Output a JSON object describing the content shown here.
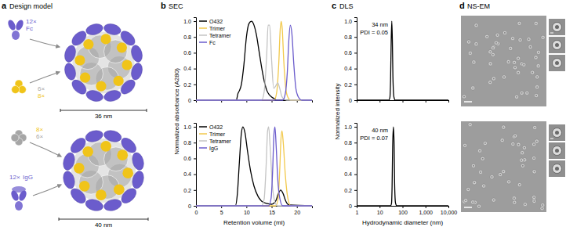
{
  "figure": {
    "panels": [
      {
        "letter": "a",
        "title": "Design model"
      },
      {
        "letter": "b",
        "title": "SEC"
      },
      {
        "letter": "c",
        "title": "DLS"
      },
      {
        "letter": "d",
        "title": "NS-EM"
      }
    ],
    "design_model": [
      {
        "components": [
          {
            "count": "12×",
            "name": "Fc",
            "color": "#6b5ccc"
          },
          {
            "count": "6×",
            "color": "#a6a6a6"
          },
          {
            "count": "8×",
            "color": "#f0c419"
          }
        ],
        "diameter": "36 nm"
      },
      {
        "components": [
          {
            "count": "8×",
            "color": "#f0c419"
          },
          {
            "count": "6×",
            "color": "#a6a6a6"
          },
          {
            "count": "12×",
            "name": "IgG",
            "color": "#6b5ccc"
          }
        ],
        "diameter": "40 nm"
      }
    ]
  },
  "chart_data": [
    {
      "type": "line",
      "ylabel": "Normalized absorbance (A280)",
      "xlim": [
        0,
        23
      ],
      "xticks": [
        0,
        5,
        10,
        15,
        20
      ],
      "ylim": [
        0,
        1.05
      ],
      "yticks": [
        0,
        0.2,
        0.4,
        0.6,
        0.8,
        {
          "value": 1,
          "label": "1.0"
        }
      ],
      "tick_labels": "y",
      "legend": "upper left",
      "series": [
        {
          "name": "O432",
          "color": "#000000",
          "x": [
            0,
            8,
            8.3,
            8.6,
            9,
            9.5,
            10,
            10.5,
            11,
            11.5,
            12,
            12.5,
            13,
            13.5,
            14,
            14.5,
            15,
            15.5,
            16,
            23
          ],
          "values": [
            0,
            0,
            0.08,
            0.12,
            0.2,
            0.45,
            0.8,
            0.97,
            1.0,
            0.95,
            0.82,
            0.62,
            0.42,
            0.25,
            0.13,
            0.07,
            0.04,
            0.02,
            0,
            0
          ]
        },
        {
          "name": "Trimer",
          "color": "#f2c94c",
          "x": [
            0,
            15.5,
            16,
            16.4,
            16.7,
            16.9,
            17.1,
            17.4,
            17.8,
            18.2,
            18.8,
            23
          ],
          "values": [
            0,
            0,
            0.1,
            0.45,
            0.9,
            1.0,
            0.9,
            0.5,
            0.15,
            0.04,
            0,
            0
          ]
        },
        {
          "name": "Tetramer",
          "color": "#c4c4c4",
          "x": [
            0,
            13,
            13.5,
            14,
            14.3,
            14.6,
            15,
            15.4,
            15.8,
            16.2,
            16.6,
            17,
            17.5,
            18,
            23
          ],
          "values": [
            0,
            0,
            0.1,
            0.55,
            0.95,
            0.95,
            0.5,
            0.15,
            0.18,
            0.22,
            0.15,
            0.05,
            0.01,
            0,
            0
          ]
        },
        {
          "name": "Fc",
          "color": "#6b5ccc",
          "x": [
            0,
            17.2,
            17.7,
            18.1,
            18.4,
            18.7,
            19,
            19.4,
            19.8,
            20.3,
            21,
            23
          ],
          "values": [
            0,
            0,
            0.08,
            0.35,
            0.75,
            0.95,
            0.85,
            0.45,
            0.15,
            0.04,
            0,
            0
          ]
        }
      ]
    },
    {
      "type": "line",
      "xlabel": "Retention volume (ml)",
      "xlim": [
        0,
        23
      ],
      "xticks": [
        0,
        5,
        10,
        15,
        20
      ],
      "ylim": [
        0,
        1.05
      ],
      "yticks": [
        0,
        0.2,
        0.4,
        0.6,
        0.8,
        {
          "value": 1,
          "label": "1.0"
        }
      ],
      "legend": "upper left",
      "series": [
        {
          "name": "O432",
          "color": "#000000",
          "x": [
            0,
            7.8,
            8.2,
            8.6,
            9,
            9.3,
            9.7,
            10.2,
            10.8,
            11.5,
            12.3,
            13,
            14,
            15,
            15.8,
            16.3,
            16.8,
            17.3,
            17.8,
            18.5,
            23
          ],
          "values": [
            0,
            0,
            0.15,
            0.55,
            0.92,
            1.0,
            0.93,
            0.7,
            0.45,
            0.25,
            0.12,
            0.06,
            0.03,
            0.02,
            0.06,
            0.15,
            0.2,
            0.15,
            0.06,
            0.01,
            0
          ]
        },
        {
          "name": "Trimer",
          "color": "#f2c94c",
          "x": [
            0,
            15.8,
            16.3,
            16.6,
            16.85,
            17.05,
            17.3,
            17.7,
            18.2,
            18.8,
            23
          ],
          "values": [
            0,
            0,
            0.1,
            0.45,
            0.85,
            0.95,
            0.8,
            0.4,
            0.1,
            0,
            0
          ]
        },
        {
          "name": "Tetramer",
          "color": "#c4c4c4",
          "x": [
            0,
            13,
            13.5,
            13.9,
            14.2,
            14.4,
            14.7,
            15.1,
            15.6,
            16.2,
            23
          ],
          "values": [
            0,
            0,
            0.08,
            0.5,
            0.95,
            1.0,
            0.75,
            0.3,
            0.06,
            0,
            0
          ]
        },
        {
          "name": "IgG",
          "color": "#6b5ccc",
          "x": [
            0,
            14.4,
            14.9,
            15.2,
            15.45,
            15.65,
            15.9,
            16.2,
            16.6,
            17.2,
            23
          ],
          "values": [
            0,
            0,
            0.1,
            0.45,
            0.9,
            1.0,
            0.75,
            0.35,
            0.1,
            0,
            0
          ]
        }
      ]
    },
    {
      "type": "line",
      "ylabel": "Normalized intensity",
      "log": "x",
      "xlim": [
        1,
        10000
      ],
      "xticks": [
        1,
        10,
        100,
        {
          "value": 1000,
          "label": "1,000"
        },
        {
          "value": 10000,
          "label": "10,000"
        }
      ],
      "ylim": [
        0,
        1.05
      ],
      "yticks": [
        0,
        0.2,
        0.4,
        0.6,
        0.8,
        {
          "value": 1,
          "label": "1.0"
        }
      ],
      "tick_labels": "y",
      "annotations": [
        "34 nm",
        "PDI = 0.05"
      ],
      "series": [
        {
          "color": "#000000",
          "x": [
            1,
            25,
            28,
            30,
            32,
            34,
            36,
            38,
            42,
            48,
            10000
          ],
          "values": [
            0,
            0,
            0.03,
            0.25,
            0.75,
            1.0,
            0.75,
            0.3,
            0.04,
            0,
            0
          ]
        }
      ]
    },
    {
      "type": "line",
      "xlabel": "Hydrodynamic diameter (nm)",
      "log": "x",
      "xlim": [
        1,
        10000
      ],
      "xticks": [
        1,
        10,
        100,
        {
          "value": 1000,
          "label": "1,000"
        },
        {
          "value": 10000,
          "label": "10,000"
        }
      ],
      "ylim": [
        0,
        1.05
      ],
      "yticks": [
        0,
        0.2,
        0.4,
        0.6,
        0.8,
        {
          "value": 1,
          "label": "1.0"
        }
      ],
      "annotations": [
        "40 nm",
        "PDI = 0.07"
      ],
      "series": [
        {
          "color": "#000000",
          "x": [
            1,
            30,
            33,
            35,
            37,
            40,
            43,
            45,
            49,
            56,
            10000
          ],
          "values": [
            0,
            0,
            0.03,
            0.25,
            0.75,
            1.0,
            0.75,
            0.3,
            0.04,
            0,
            0
          ]
        }
      ]
    }
  ]
}
